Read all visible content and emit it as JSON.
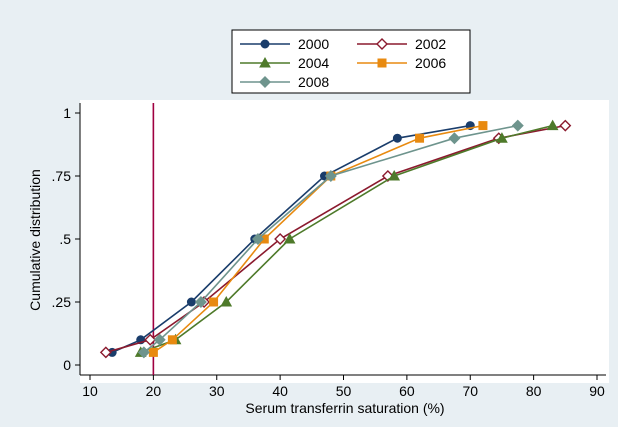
{
  "colors": {
    "background_outer": "#e8eff3",
    "background_plot": "#ffffff",
    "reference_line": "#a00040",
    "s2000": "#1a3d6b",
    "s2002": "#8b1a2e",
    "s2004": "#4e7a2a",
    "s2006": "#e88a10",
    "s2008": "#6e948d"
  },
  "chart_data": {
    "type": "line",
    "xlabel": "Serum transferrin saturation (%)",
    "ylabel": "Cumulative distribution",
    "xlim": [
      10,
      90
    ],
    "ylim": [
      0,
      1
    ],
    "x_ticks": [
      10,
      20,
      30,
      40,
      50,
      60,
      70,
      80,
      90
    ],
    "x_tick_labels": [
      "10",
      "20",
      "30",
      "40",
      "50",
      "60",
      "70",
      "80",
      "90"
    ],
    "y_ticks": [
      0,
      0.25,
      0.5,
      0.75,
      1
    ],
    "y_tick_labels": [
      "0",
      ".25",
      ".5",
      ".75",
      "1"
    ],
    "grid": false,
    "legend_position": "top-center",
    "reference_line_x": 20,
    "series": [
      {
        "name": "2000",
        "color_key": "s2000",
        "marker": "circle-filled",
        "x": [
          13.5,
          18,
          26,
          36,
          47,
          58.5,
          70
        ],
        "y": [
          0.05,
          0.1,
          0.25,
          0.5,
          0.75,
          0.9,
          0.95
        ]
      },
      {
        "name": "2002",
        "color_key": "s2002",
        "marker": "diamond-hollow",
        "x": [
          12.5,
          19.5,
          28,
          40,
          57,
          74.5,
          85
        ],
        "y": [
          0.05,
          0.1,
          0.25,
          0.5,
          0.75,
          0.9,
          0.95
        ]
      },
      {
        "name": "2004",
        "color_key": "s2004",
        "marker": "triangle-filled",
        "x": [
          18,
          23.5,
          31.5,
          41.5,
          58,
          75,
          83
        ],
        "y": [
          0.05,
          0.1,
          0.25,
          0.5,
          0.75,
          0.9,
          0.95
        ]
      },
      {
        "name": "2006",
        "color_key": "s2006",
        "marker": "square-filled",
        "x": [
          20,
          23,
          29.5,
          37.5,
          48,
          62,
          72
        ],
        "y": [
          0.05,
          0.1,
          0.25,
          0.5,
          0.75,
          0.9,
          0.95
        ]
      },
      {
        "name": "2008",
        "color_key": "s2008",
        "marker": "diamond-filled",
        "x": [
          18.5,
          21,
          27.5,
          36.5,
          48,
          67.5,
          77.5
        ],
        "y": [
          0.05,
          0.1,
          0.25,
          0.5,
          0.75,
          0.9,
          0.95
        ]
      }
    ]
  }
}
